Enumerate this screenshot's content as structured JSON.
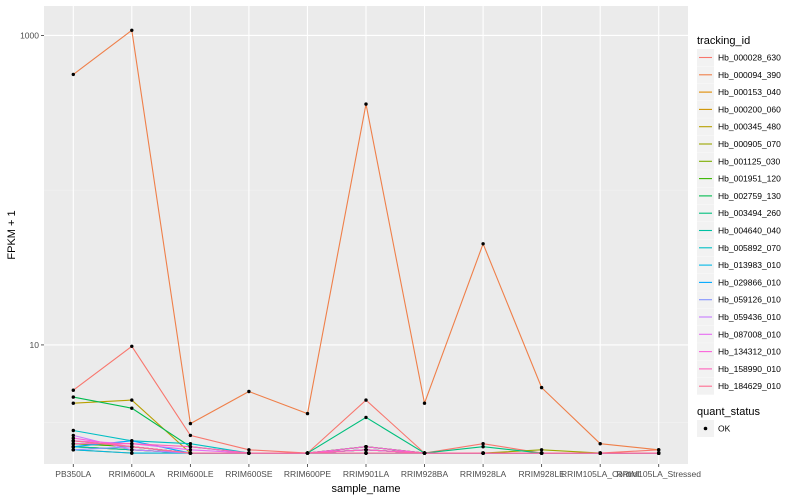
{
  "chart_data": {
    "type": "line",
    "xlabel": "sample_name",
    "ylabel": "FPKM + 1",
    "y_scale": "log10",
    "ylim": [
      1.7,
      1550
    ],
    "y_ticks": [
      {
        "value": 10,
        "label": "10"
      },
      {
        "value": 1000,
        "label": "1000"
      }
    ],
    "grid": true,
    "legend_position": "right",
    "categories": [
      "PB350LA",
      "RRIM600LA",
      "RRIM600LE",
      "RRIM600SE",
      "RRIM600PE",
      "RRIM901LA",
      "RRIM928BA",
      "RRIM928LA",
      "RRIM928LE",
      "RRIM105LA_Control",
      "RRIM105LA_Stressed"
    ],
    "series": [
      {
        "name": "Hb_000028_630",
        "color": "#F8766D",
        "values": [
          5.1,
          9.8,
          2.6,
          2.1,
          2.0,
          4.4,
          2.0,
          2.3,
          2.0,
          2.0,
          2.1
        ]
      },
      {
        "name": "Hb_000094_390",
        "color": "#EF7F49",
        "values": [
          560,
          1080,
          3.1,
          5.0,
          3.6,
          360,
          4.2,
          45,
          5.3,
          2.3,
          2.1
        ]
      },
      {
        "name": "Hb_000153_040",
        "color": "#E08B00",
        "values": [
          2.2,
          2.1,
          2.0,
          2.0,
          2.0,
          2.2,
          2.0,
          2.0,
          2.0,
          2.0,
          2.0
        ]
      },
      {
        "name": "Hb_000200_060",
        "color": "#CF9400",
        "values": [
          2.1,
          2.0,
          2.0,
          2.0,
          2.0,
          2.1,
          2.0,
          2.0,
          2.0,
          2.0,
          2.0
        ]
      },
      {
        "name": "Hb_000345_480",
        "color": "#B79F00",
        "values": [
          4.2,
          4.4,
          2.0,
          2.0,
          2.0,
          2.0,
          2.0,
          2.0,
          2.0,
          2.0,
          2.0
        ]
      },
      {
        "name": "Hb_000905_070",
        "color": "#9CA700",
        "values": [
          2.3,
          2.2,
          2.0,
          2.0,
          2.0,
          2.2,
          2.0,
          2.0,
          2.1,
          2.0,
          2.0
        ]
      },
      {
        "name": "Hb_001125_030",
        "color": "#7CAE00",
        "values": [
          2.2,
          2.1,
          2.0,
          2.0,
          2.0,
          2.1,
          2.0,
          2.0,
          2.0,
          2.0,
          2.0
        ]
      },
      {
        "name": "Hb_001951_120",
        "color": "#39B600",
        "values": [
          2.3,
          2.2,
          2.0,
          2.0,
          2.0,
          2.1,
          2.0,
          2.0,
          2.0,
          2.0,
          2.0
        ]
      },
      {
        "name": "Hb_002759_130",
        "color": "#00BB4E",
        "values": [
          4.6,
          3.9,
          2.2,
          2.0,
          2.0,
          2.2,
          2.0,
          2.0,
          2.0,
          2.0,
          2.0
        ]
      },
      {
        "name": "Hb_003494_260",
        "color": "#00BF7D",
        "values": [
          2.4,
          2.2,
          2.0,
          2.0,
          2.0,
          3.4,
          2.0,
          2.2,
          2.0,
          2.0,
          2.0
        ]
      },
      {
        "name": "Hb_004640_040",
        "color": "#00C1A3",
        "values": [
          2.2,
          2.1,
          2.0,
          2.0,
          2.0,
          2.1,
          2.0,
          2.0,
          2.0,
          2.0,
          2.0
        ]
      },
      {
        "name": "Hb_005892_070",
        "color": "#00BFC4",
        "values": [
          2.8,
          2.4,
          2.3,
          2.0,
          2.0,
          2.1,
          2.0,
          2.0,
          2.0,
          2.0,
          2.0
        ]
      },
      {
        "name": "Hb_013983_010",
        "color": "#00B8E7",
        "values": [
          2.1,
          2.0,
          2.0,
          2.0,
          2.0,
          2.0,
          2.0,
          2.0,
          2.0,
          2.0,
          2.0
        ]
      },
      {
        "name": "Hb_029866_010",
        "color": "#00A9FF",
        "values": [
          2.2,
          2.4,
          2.0,
          2.0,
          2.0,
          2.0,
          2.0,
          2.0,
          2.0,
          2.0,
          2.0
        ]
      },
      {
        "name": "Hb_059126_010",
        "color": "#8494FF",
        "values": [
          2.1,
          2.2,
          2.0,
          2.0,
          2.0,
          2.1,
          2.0,
          2.0,
          2.0,
          2.0,
          2.0
        ]
      },
      {
        "name": "Hb_059436_010",
        "color": "#C77CFF",
        "values": [
          2.6,
          2.1,
          2.0,
          2.0,
          2.0,
          2.0,
          2.0,
          2.0,
          2.0,
          2.0,
          2.0
        ]
      },
      {
        "name": "Hb_087008_010",
        "color": "#E76BF3",
        "values": [
          2.4,
          2.3,
          2.1,
          2.0,
          2.0,
          2.1,
          2.0,
          2.0,
          2.0,
          2.0,
          2.0
        ]
      },
      {
        "name": "Hb_134312_010",
        "color": "#FA62DB",
        "values": [
          2.5,
          2.2,
          2.0,
          2.0,
          2.0,
          2.2,
          2.0,
          2.0,
          2.0,
          2.0,
          2.0
        ]
      },
      {
        "name": "Hb_158990_010",
        "color": "#FF62BC",
        "values": [
          2.3,
          2.3,
          2.2,
          2.0,
          2.0,
          2.1,
          2.0,
          2.0,
          2.0,
          2.0,
          2.0
        ]
      },
      {
        "name": "Hb_184629_010",
        "color": "#FF6C91",
        "values": [
          2.4,
          2.2,
          2.0,
          2.0,
          2.0,
          2.0,
          2.0,
          2.0,
          2.0,
          2.0,
          2.0
        ]
      }
    ],
    "legend": {
      "title": "tracking_id",
      "point_title": "quant_status",
      "point_label": "OK"
    },
    "colors": {
      "panel": "#EBEBEB",
      "grid_major": "#FFFFFF",
      "grid_minor": "#F2F2F2",
      "point": "#000000"
    }
  }
}
